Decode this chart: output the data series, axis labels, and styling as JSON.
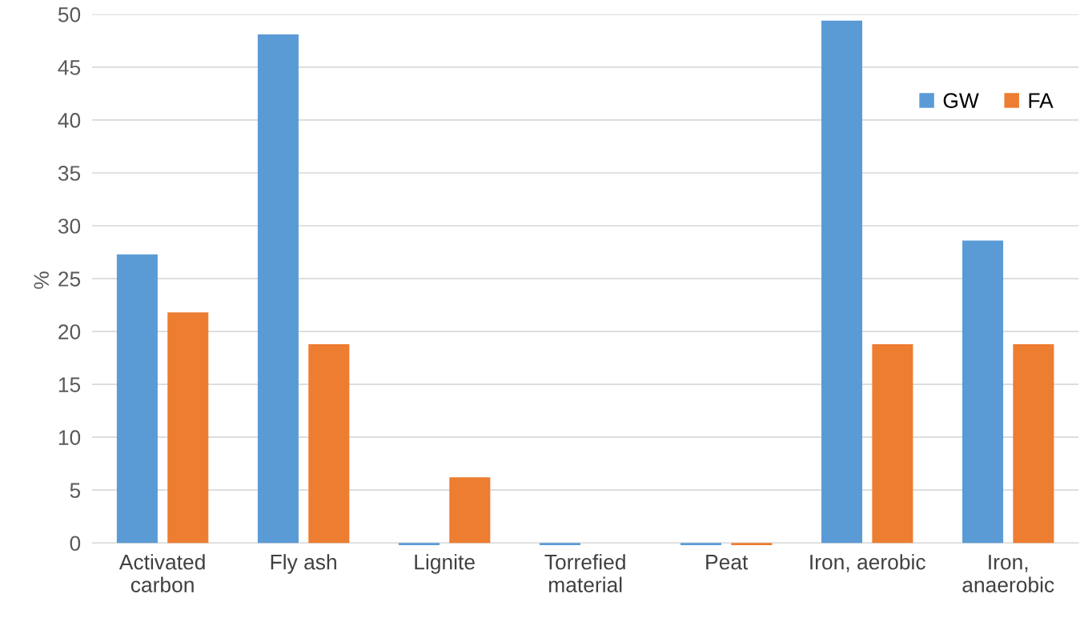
{
  "chart_data": {
    "type": "bar",
    "ylabel": "%",
    "categories": [
      "Activated\ncarbon",
      "Fly ash",
      "Lignite",
      "Torrefied\nmaterial",
      "Peat",
      "Iron, aerobic",
      "Iron,\nanaerobic"
    ],
    "series": [
      {
        "name": "GW",
        "color": "#5b9bd5",
        "values": [
          27.3,
          48.1,
          -0.2,
          -0.2,
          -0.2,
          49.4,
          28.6
        ]
      },
      {
        "name": "FA",
        "color": "#ed7d31",
        "values": [
          21.8,
          18.8,
          6.2,
          0,
          -0.2,
          18.8,
          18.8
        ]
      }
    ],
    "ylim": [
      -0.3,
      50
    ],
    "yticks": [
      0,
      5,
      10,
      15,
      20,
      25,
      30,
      35,
      40,
      45,
      50
    ],
    "grid": "y",
    "legend": "top right"
  }
}
